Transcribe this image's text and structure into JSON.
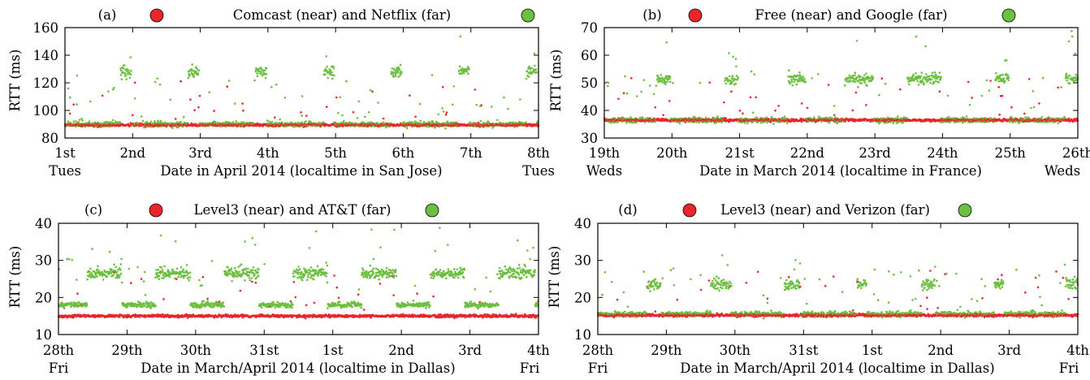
{
  "colors": {
    "near": "#e8262b",
    "far": "#6cbf3f",
    "axis": "#000000"
  },
  "chart_data": [
    {
      "type": "scatter",
      "panel_label": "(a)",
      "title_near": "Comcast (near) and Netflix (far)",
      "ylabel": "RTT (ms)",
      "xlabel": "Date in April 2014 (localtime in San Jose)",
      "ylim": [
        80,
        160
      ],
      "yticks": [
        80,
        100,
        120,
        140,
        160
      ],
      "xlim": [
        0,
        7
      ],
      "xticks": [
        {
          "x": 0,
          "label": "1st"
        },
        {
          "x": 1,
          "label": "2nd"
        },
        {
          "x": 2,
          "label": "3rd"
        },
        {
          "x": 3,
          "label": "4th"
        },
        {
          "x": 4,
          "label": "5th"
        },
        {
          "x": 5,
          "label": "6th"
        },
        {
          "x": 6,
          "label": "7th"
        },
        {
          "x": 7,
          "label": "8th"
        }
      ],
      "day_left": "Tues",
      "day_right": "Tues",
      "near_baseline": 89.5,
      "far_baseline": 90,
      "far_peak": 128,
      "peak_windows": [
        [
          0.82,
          0.98
        ],
        [
          1.82,
          1.98
        ],
        [
          2.82,
          2.98
        ],
        [
          3.82,
          3.98
        ],
        [
          4.82,
          4.98
        ],
        [
          5.82,
          5.98
        ],
        [
          6.82,
          6.98
        ]
      ],
      "series": [
        {
          "name": "Comcast (near)"
        },
        {
          "name": "Netflix (far)"
        }
      ]
    },
    {
      "type": "scatter",
      "panel_label": "(b)",
      "title_near": "Free (near) and Google (far)",
      "ylabel": "RTT (ms)",
      "xlabel": "Date in March 2014 (localtime in France)",
      "ylim": [
        30,
        70
      ],
      "yticks": [
        30,
        40,
        50,
        60,
        70
      ],
      "xlim": [
        0,
        7
      ],
      "xticks": [
        {
          "x": 0,
          "label": "19th"
        },
        {
          "x": 1,
          "label": "20th"
        },
        {
          "x": 2,
          "label": "21st"
        },
        {
          "x": 3,
          "label": "22nd"
        },
        {
          "x": 4,
          "label": "23rd"
        },
        {
          "x": 5,
          "label": "24th"
        },
        {
          "x": 6,
          "label": "25th"
        },
        {
          "x": 7,
          "label": "26th"
        }
      ],
      "day_left": "Weds",
      "day_right": "Weds",
      "near_baseline": 36.5,
      "far_baseline": 36.5,
      "far_peak": 51.5,
      "peak_windows": [
        [
          0.78,
          0.98
        ],
        [
          1.78,
          1.98
        ],
        [
          2.72,
          2.98
        ],
        [
          3.55,
          3.98
        ],
        [
          4.48,
          4.98
        ],
        [
          5.78,
          5.98
        ],
        [
          6.82,
          7.0
        ]
      ],
      "series": [
        {
          "name": "Free (near)"
        },
        {
          "name": "Google (far)"
        }
      ]
    },
    {
      "type": "scatter",
      "panel_label": "(c)",
      "title_near": "Level3 (near) and AT&T (far)",
      "ylabel": "RTT (ms)",
      "xlabel": "Date in March/April 2014 (localtime in Dallas)",
      "ylim": [
        10,
        40
      ],
      "yticks": [
        10,
        20,
        30,
        40
      ],
      "xlim": [
        0,
        7
      ],
      "xticks": [
        {
          "x": 0,
          "label": "28th"
        },
        {
          "x": 1,
          "label": "29th"
        },
        {
          "x": 2,
          "label": "30th"
        },
        {
          "x": 3,
          "label": "31st"
        },
        {
          "x": 4,
          "label": "1st"
        },
        {
          "x": 5,
          "label": "2nd"
        },
        {
          "x": 6,
          "label": "3rd"
        },
        {
          "x": 7,
          "label": "4th"
        }
      ],
      "day_left": "Fri",
      "day_right": "Fri",
      "near_baseline": 15,
      "far_baseline": 18,
      "far_peak": 26.5,
      "peak_windows": [
        [
          0.42,
          0.92
        ],
        [
          1.42,
          1.92
        ],
        [
          2.42,
          2.92
        ],
        [
          3.42,
          3.92
        ],
        [
          4.42,
          4.92
        ],
        [
          5.42,
          5.92
        ],
        [
          6.42,
          6.95
        ]
      ],
      "series": [
        {
          "name": "Level3 (near)"
        },
        {
          "name": "AT&T (far)"
        }
      ]
    },
    {
      "type": "scatter",
      "panel_label": "(d)",
      "title_near": "Level3 (near) and Verizon (far)",
      "ylabel": "RTT (ms)",
      "xlabel": "Date in March/April 2014 (localtime in Dallas)",
      "ylim": [
        10,
        40
      ],
      "yticks": [
        10,
        20,
        30,
        40
      ],
      "xlim": [
        0,
        7
      ],
      "xticks": [
        {
          "x": 0,
          "label": "28th"
        },
        {
          "x": 1,
          "label": "29th"
        },
        {
          "x": 2,
          "label": "30th"
        },
        {
          "x": 3,
          "label": "31st"
        },
        {
          "x": 4,
          "label": "1st"
        },
        {
          "x": 5,
          "label": "2nd"
        },
        {
          "x": 6,
          "label": "3rd"
        },
        {
          "x": 7,
          "label": "4th"
        }
      ],
      "day_left": "Fri",
      "day_right": "Fri",
      "near_baseline": 15.2,
      "far_baseline": 15.5,
      "far_peak": 23.5,
      "peak_windows": [
        [
          0.72,
          0.92
        ],
        [
          1.65,
          1.95
        ],
        [
          2.72,
          2.95
        ],
        [
          3.78,
          3.92
        ],
        [
          4.72,
          4.92
        ],
        [
          5.78,
          5.92
        ],
        [
          6.82,
          7.0
        ]
      ],
      "series": [
        {
          "name": "Level3 (near)"
        },
        {
          "name": "Verizon (far)"
        }
      ]
    }
  ]
}
